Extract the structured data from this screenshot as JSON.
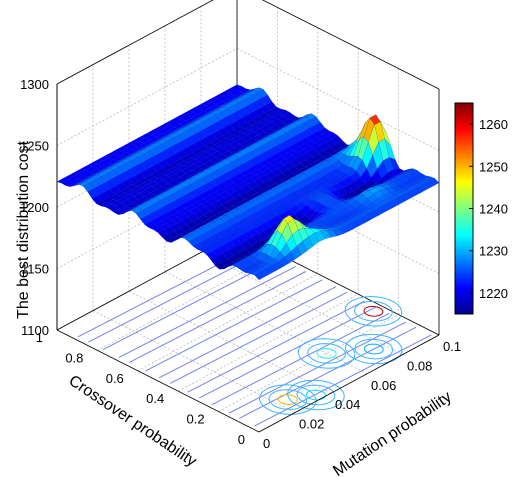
{
  "chart_data": {
    "type": "surface",
    "title": "",
    "zlabel": "The best distribution cost",
    "xlabel": "Mutation probability",
    "ylabel": "Crossover probability",
    "zlim": [
      1100,
      1300
    ],
    "z_ticks": [
      "1100",
      "1150",
      "1200",
      "1250",
      "1300"
    ],
    "xlim": [
      0,
      0.1
    ],
    "x_ticks": [
      "0",
      "0.02",
      "0.04",
      "0.06",
      "0.08",
      "0.1"
    ],
    "ylim": [
      0,
      1
    ],
    "y_ticks": [
      "0",
      "0.2",
      "0.4",
      "0.6",
      "0.8",
      "1"
    ],
    "surface_baseline": 1225,
    "surface_ridges": "stripes of roughly 1220 to 1232 running along the mutation probability axis",
    "peaks": [
      {
        "x": 0.095,
        "y": 0.28,
        "z": 1262
      },
      {
        "x": 0.025,
        "y": 0.08,
        "z": 1250
      },
      {
        "x": 0.06,
        "y": 0.2,
        "z": 1235
      },
      {
        "x": 0.035,
        "y": 0.03,
        "z": 1232
      },
      {
        "x": 0.075,
        "y": 0.1,
        "z": 1230
      }
    ],
    "contour_projection": "contour plot of the surface drawn on the z = 1100 floor",
    "colorbar": {
      "min": 1215,
      "max": 1265,
      "ticks": [
        "1220",
        "1230",
        "1240",
        "1250",
        "1260"
      ],
      "colormap": "jet"
    },
    "grid": true
  },
  "colors": {
    "low": "#00008f",
    "mid": "#00ffff",
    "high": "#800000",
    "mesh_line": "#00007a",
    "grid": "#b8b8b8"
  }
}
